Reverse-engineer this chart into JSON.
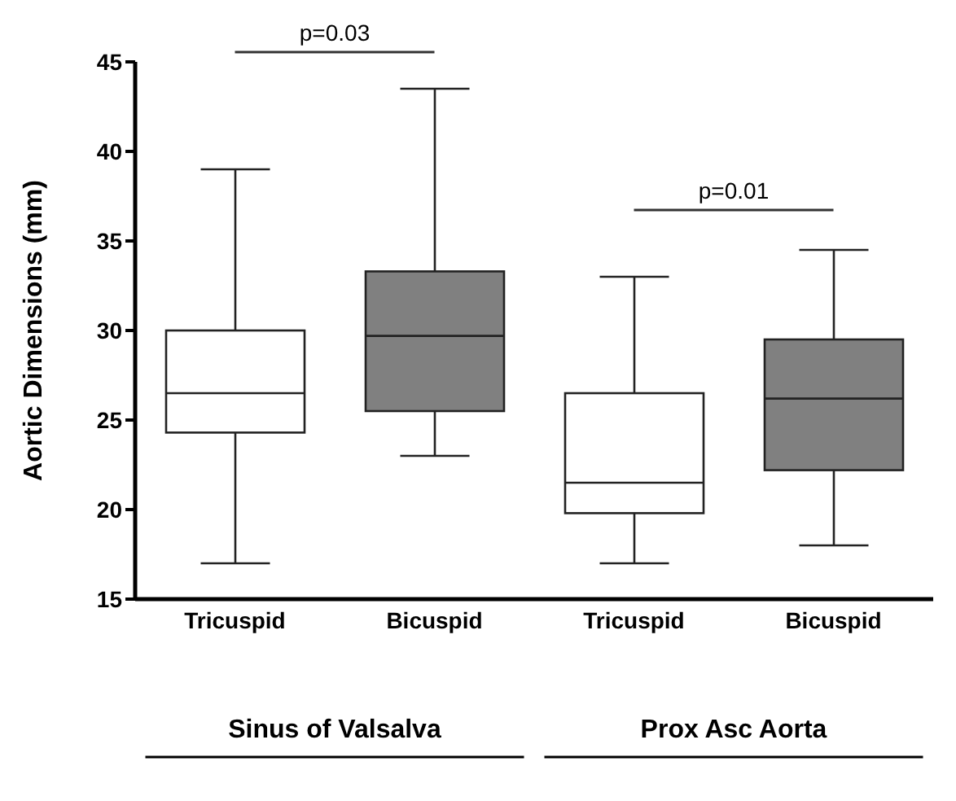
{
  "chart_data": {
    "type": "box",
    "ylabel": "Aortic Dimensions (mm)",
    "categories": [
      "Tricuspid",
      "Bicuspid",
      "Tricuspid",
      "Bicuspid"
    ],
    "boxes": [
      {
        "low": 17,
        "q1": 24.3,
        "median": 26.5,
        "q3": 30,
        "high": 39
      },
      {
        "low": 23,
        "q1": 25.5,
        "median": 29.7,
        "q3": 33.3,
        "high": 43.5
      },
      {
        "low": 17,
        "q1": 19.8,
        "median": 21.5,
        "q3": 26.5,
        "high": 33
      },
      {
        "low": 18,
        "q1": 22.2,
        "median": 26.2,
        "q3": 29.5,
        "high": 34.5
      }
    ],
    "colors": [
      "#ffffff",
      "#808080",
      "#ffffff",
      "#808080"
    ],
    "ylim": [
      15,
      45
    ],
    "yticks": [
      15,
      20,
      25,
      30,
      35,
      40,
      45
    ],
    "annotations": [
      "p=0.03",
      "p=0.01",
      "Sinus of Valsalva",
      "Prox Asc Aorta"
    ]
  }
}
